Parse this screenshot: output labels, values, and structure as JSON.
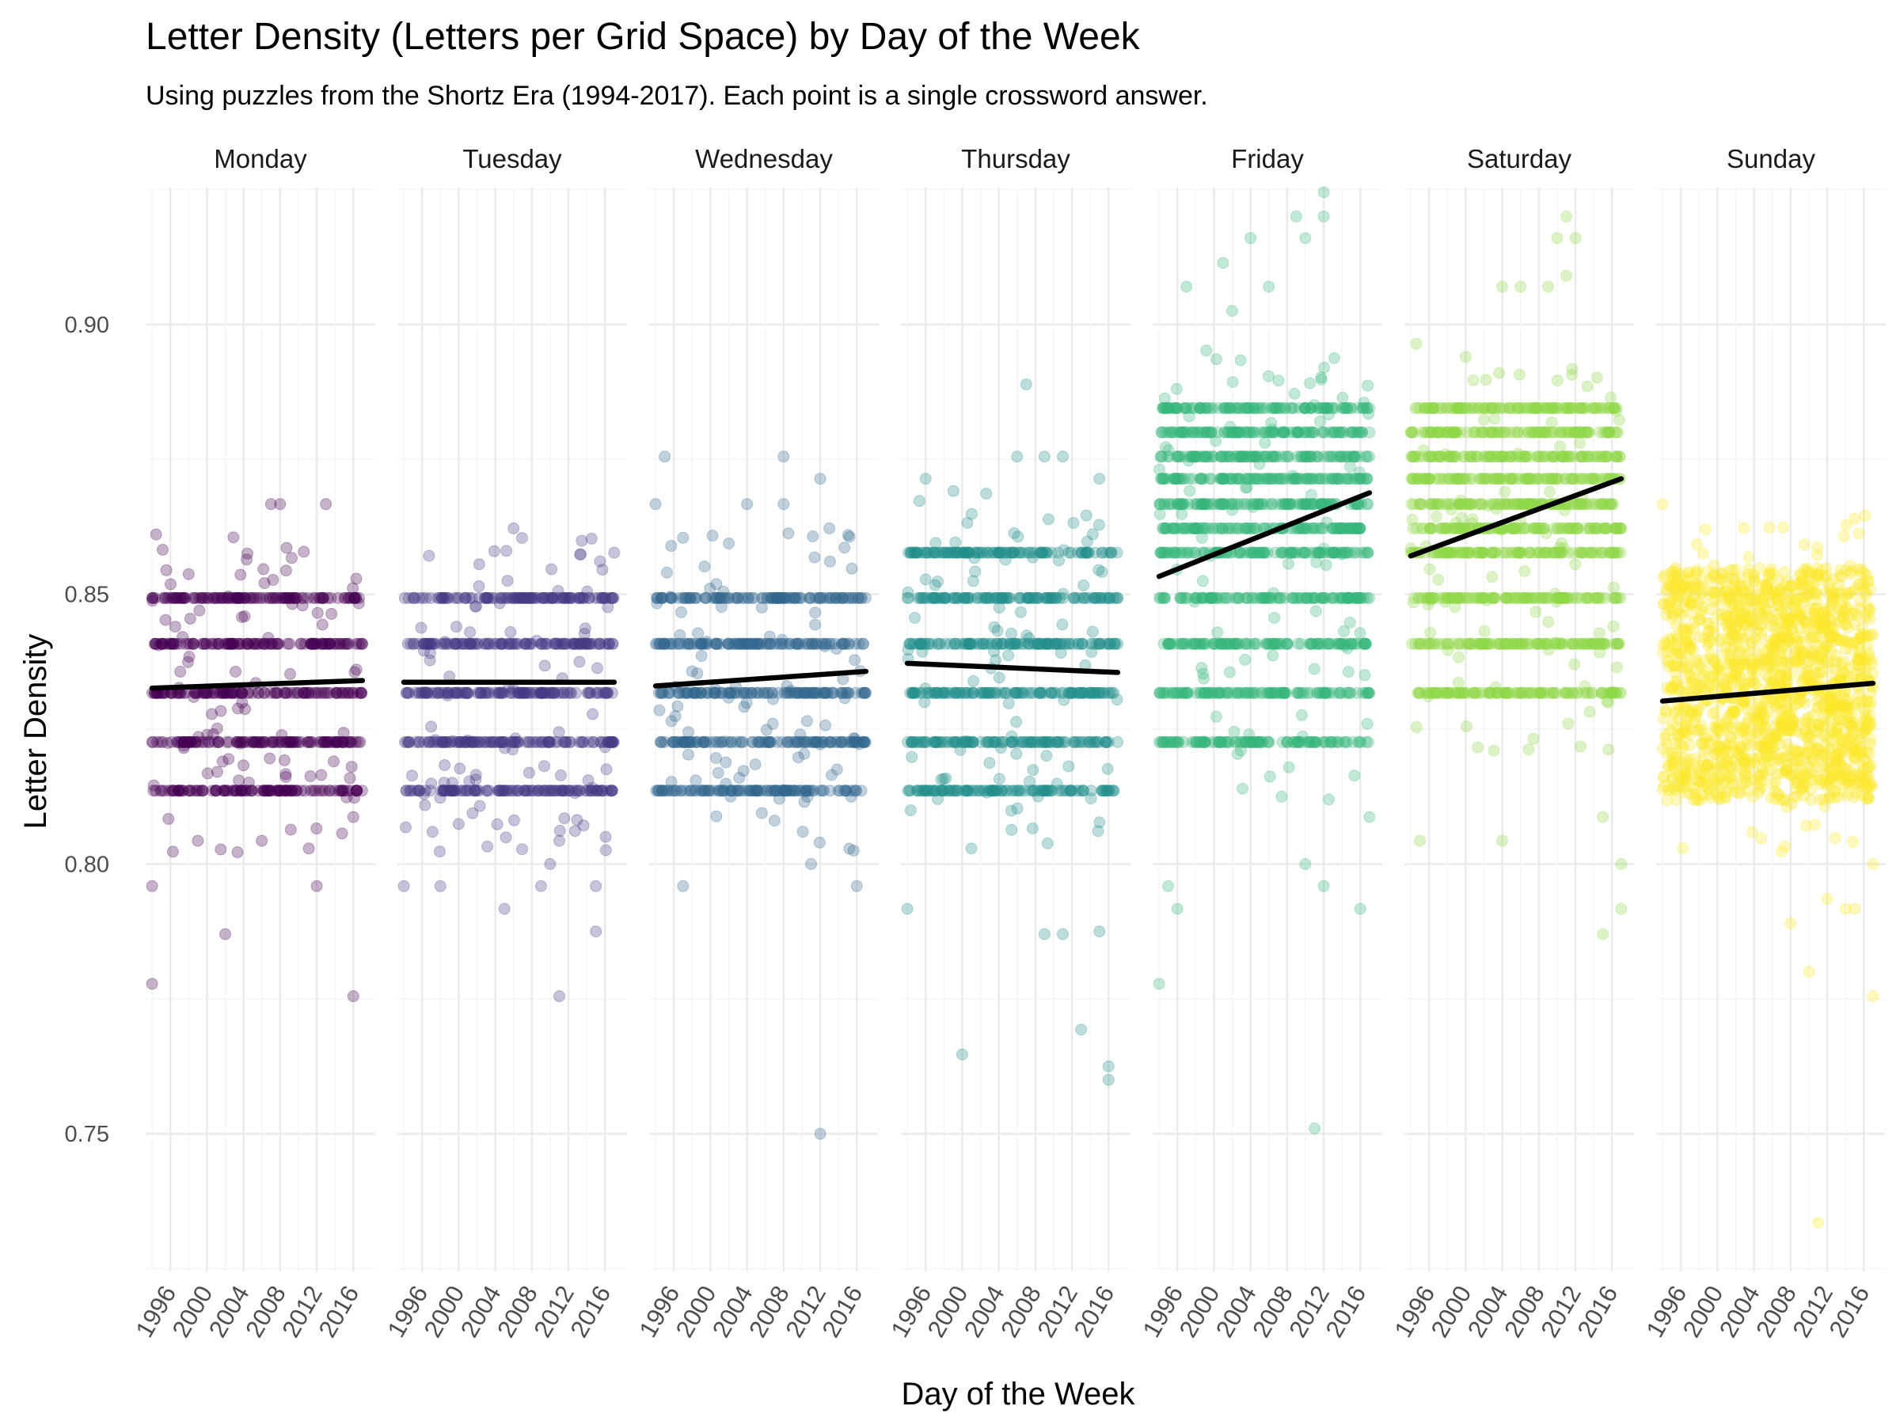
{
  "chart_data": {
    "type": "scatter",
    "title": "Letter Density (Letters per Grid Space) by Day of the Week",
    "subtitle": "Using puzzles from the Shortz Era (1994-2017). Each point is a single crossword answer.",
    "xlabel": "Day of the Week",
    "ylabel": "Letter Density",
    "xlim": [
      1993.3,
      2018.4
    ],
    "ylim": [
      0.7245,
      0.9255
    ],
    "x_ticks": [
      1996,
      2000,
      2004,
      2008,
      2012,
      2016
    ],
    "x_tick_labels": [
      "1996",
      "2000",
      "2004",
      "2008",
      "2012",
      "2016"
    ],
    "y_ticks": [
      0.75,
      0.8,
      0.85,
      0.9
    ],
    "y_tick_labels": [
      "0.75",
      "0.80",
      "0.85",
      "0.90"
    ],
    "grid": true,
    "legend": "none",
    "point_alpha": 0.3,
    "series": [
      {
        "name": "Monday",
        "color": "#440154",
        "bands": [
          0.8136,
          0.8226,
          0.8317,
          0.8408,
          0.8493
        ],
        "trend": [
          [
            1994,
            0.8326
          ],
          [
            2017,
            0.834
          ]
        ],
        "outliers": [
          [
            1994,
            0.7778
          ],
          [
            1994,
            0.7959
          ],
          [
            2002,
            0.787
          ],
          [
            2012,
            0.7959
          ],
          [
            2016,
            0.7755
          ],
          [
            2007,
            0.8667
          ],
          [
            2008,
            0.8667
          ],
          [
            2013,
            0.8667
          ],
          [
            1999,
            0.8043
          ],
          [
            2006,
            0.8043
          ],
          [
            2016,
            0.8087
          ]
        ]
      },
      {
        "name": "Tuesday",
        "color": "#443983",
        "bands": [
          0.8136,
          0.8226,
          0.8317,
          0.8408,
          0.8493
        ],
        "trend": [
          [
            1994,
            0.8337
          ],
          [
            2017,
            0.8337
          ]
        ],
        "outliers": [
          [
            1994,
            0.7959
          ],
          [
            1998,
            0.7959
          ],
          [
            2005,
            0.7917
          ],
          [
            2009,
            0.7959
          ],
          [
            2011,
            0.7755
          ],
          [
            2015,
            0.7875
          ],
          [
            2015,
            0.7959
          ],
          [
            2006,
            0.8622
          ],
          [
            2010,
            0.8
          ],
          [
            2011,
            0.8043
          ],
          [
            2017,
            0.8577
          ]
        ]
      },
      {
        "name": "Wednesday",
        "color": "#31688E",
        "bands": [
          0.8136,
          0.8226,
          0.8317,
          0.8408,
          0.8493
        ],
        "trend": [
          [
            1994,
            0.833
          ],
          [
            2017,
            0.8357
          ]
        ],
        "outliers": [
          [
            1995,
            0.8755
          ],
          [
            1997,
            0.7959
          ],
          [
            2008,
            0.8755
          ],
          [
            2011,
            0.8
          ],
          [
            2012,
            0.8714
          ],
          [
            2012,
            0.75
          ],
          [
            2016,
            0.7959
          ],
          [
            1994,
            0.8667
          ],
          [
            2004,
            0.8667
          ],
          [
            2008,
            0.8667
          ],
          [
            2013,
            0.8622
          ]
        ]
      },
      {
        "name": "Thursday",
        "color": "#21908C",
        "bands": [
          0.8136,
          0.8226,
          0.8317,
          0.8408,
          0.8493,
          0.8577
        ],
        "trend": [
          [
            1994,
            0.8372
          ],
          [
            2017,
            0.8355
          ]
        ],
        "outliers": [
          [
            1996,
            0.8714
          ],
          [
            2007,
            0.8889
          ],
          [
            2000,
            0.7647
          ],
          [
            2006,
            0.8755
          ],
          [
            2009,
            0.8755
          ],
          [
            2011,
            0.8755
          ],
          [
            2009,
            0.787
          ],
          [
            2011,
            0.787
          ],
          [
            2013,
            0.7693
          ],
          [
            2016,
            0.76
          ],
          [
            2016,
            0.7625
          ],
          [
            2015,
            0.7875
          ],
          [
            1994,
            0.7917
          ],
          [
            2015,
            0.8714
          ]
        ]
      },
      {
        "name": "Friday",
        "color": "#35B779",
        "bands": [
          0.8226,
          0.8317,
          0.8408,
          0.8493,
          0.8577,
          0.8622,
          0.8667,
          0.8714,
          0.8755,
          0.88,
          0.8845
        ],
        "trend": [
          [
            1994,
            0.8533
          ],
          [
            2017,
            0.8688
          ]
        ],
        "outliers": [
          [
            2012,
            0.9245
          ],
          [
            2009,
            0.92
          ],
          [
            2012,
            0.92
          ],
          [
            2010,
            0.916
          ],
          [
            2001,
            0.9114
          ],
          [
            2004,
            0.916
          ],
          [
            1997,
            0.907
          ],
          [
            2006,
            0.907
          ],
          [
            2002,
            0.9025
          ],
          [
            2011,
            0.751
          ],
          [
            1994,
            0.7778
          ],
          [
            1995,
            0.7959
          ],
          [
            1996,
            0.7917
          ],
          [
            2010,
            0.8
          ],
          [
            2012,
            0.7959
          ],
          [
            2016,
            0.7917
          ],
          [
            2017,
            0.8087
          ]
        ]
      },
      {
        "name": "Saturday",
        "color": "#8FD744",
        "bands": [
          0.8317,
          0.8408,
          0.8493,
          0.8577,
          0.8622,
          0.8667,
          0.8714,
          0.8755,
          0.88,
          0.8845
        ],
        "trend": [
          [
            1994,
            0.8571
          ],
          [
            2017,
            0.8714
          ]
        ],
        "outliers": [
          [
            2011,
            0.92
          ],
          [
            2010,
            0.916
          ],
          [
            2012,
            0.916
          ],
          [
            2011,
            0.909
          ],
          [
            2004,
            0.907
          ],
          [
            2006,
            0.907
          ],
          [
            2009,
            0.907
          ],
          [
            2015,
            0.787
          ],
          [
            2017,
            0.7917
          ],
          [
            2017,
            0.8
          ],
          [
            2004,
            0.8043
          ],
          [
            1995,
            0.8043
          ],
          [
            2015,
            0.8087
          ]
        ]
      },
      {
        "name": "Sunday",
        "color": "#FDE725",
        "bands": [
          0.814,
          0.8182,
          0.8225,
          0.8268,
          0.8311,
          0.8354,
          0.8397,
          0.844,
          0.8483,
          0.8526
        ],
        "trend": [
          [
            1994,
            0.8302
          ],
          [
            2017,
            0.8335
          ]
        ],
        "outliers": [
          [
            2011,
            0.7335
          ],
          [
            2010,
            0.78
          ],
          [
            2017,
            0.7755
          ],
          [
            2008,
            0.789
          ],
          [
            2012,
            0.7935
          ],
          [
            2014,
            0.7917
          ],
          [
            2015,
            0.7917
          ],
          [
            2017,
            0.8
          ],
          [
            1994,
            0.8667
          ],
          [
            2015,
            0.864
          ]
        ]
      }
    ]
  }
}
